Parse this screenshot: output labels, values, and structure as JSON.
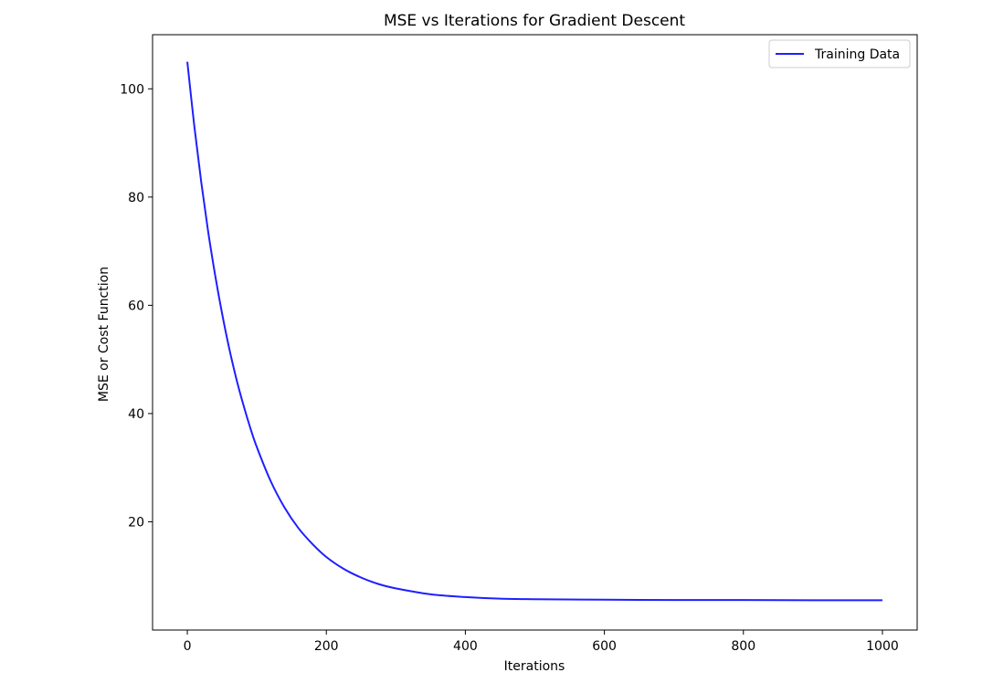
{
  "chart_data": {
    "type": "line",
    "title": "MSE vs Iterations for Gradient Descent",
    "xlabel": "Iterations",
    "ylabel": "MSE or Cost Function",
    "xlim": [
      -50,
      1050
    ],
    "ylim": [
      0,
      110
    ],
    "xticks": [
      0,
      200,
      400,
      600,
      800,
      1000
    ],
    "yticks": [
      20,
      40,
      60,
      80,
      100
    ],
    "xtick_labels": [
      "0",
      "200",
      "400",
      "600",
      "800",
      "1000"
    ],
    "ytick_labels": [
      "20",
      "40",
      "60",
      "80",
      "100"
    ],
    "grid": false,
    "legend_position": "top-right",
    "series": [
      {
        "name": "Training Data",
        "color": "#1f1fff",
        "x": [
          0,
          10,
          20,
          30,
          40,
          50,
          60,
          70,
          80,
          90,
          100,
          120,
          140,
          160,
          180,
          200,
          225,
          250,
          275,
          300,
          350,
          400,
          450,
          500,
          600,
          700,
          800,
          900,
          1000
        ],
        "y": [
          105,
          93.2,
          82.8,
          73.6,
          65.6,
          58.5,
          52.2,
          46.7,
          41.9,
          37.6,
          33.8,
          27.5,
          22.6,
          18.8,
          15.9,
          13.5,
          11.3,
          9.7,
          8.5,
          7.7,
          6.6,
          6.1,
          5.8,
          5.7,
          5.6,
          5.55,
          5.55,
          5.5,
          5.5
        ]
      }
    ]
  }
}
